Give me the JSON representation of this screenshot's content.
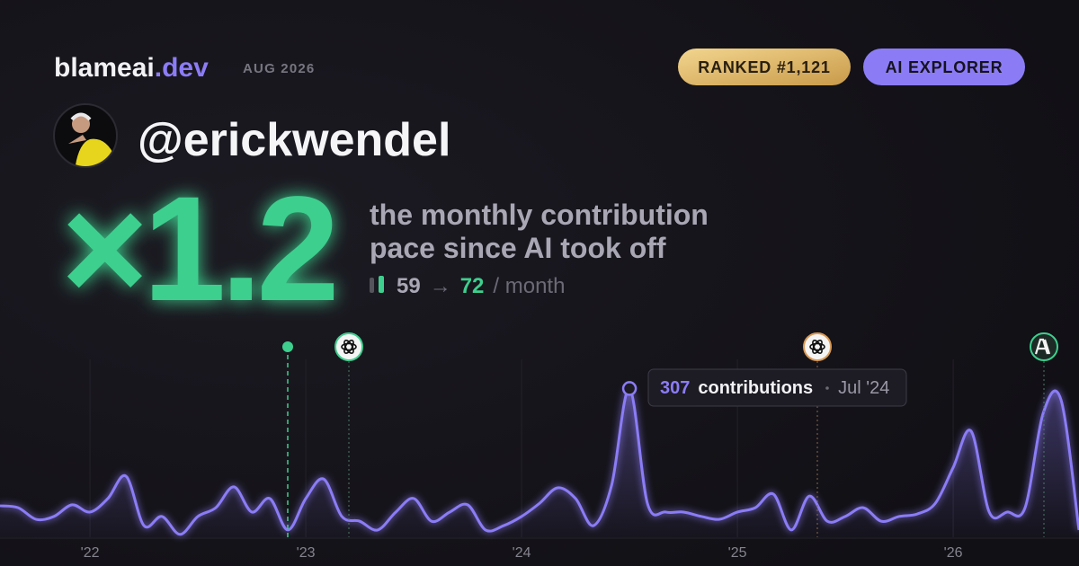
{
  "header": {
    "brand": "blameai",
    "brand_tld": ".dev",
    "date": "AUG 2026",
    "badges": [
      "RANKED #1,121",
      "AI EXPLORER"
    ]
  },
  "user": {
    "handle": "@erickwendel"
  },
  "headline": {
    "multiplier": "×1.2",
    "description_lines": [
      "the monthly contribution",
      "pace since AI took off"
    ],
    "before": 59,
    "arrow": "→",
    "after": 72,
    "unit": "/ month"
  },
  "chart_data": {
    "type": "line",
    "color": "#8b7cf6",
    "x": [
      2021.583,
      2021.667,
      2021.75,
      2021.833,
      2021.917,
      2022,
      2022.083,
      2022.167,
      2022.25,
      2022.333,
      2022.417,
      2022.5,
      2022.583,
      2022.667,
      2022.75,
      2022.833,
      2022.917,
      2023,
      2023.083,
      2023.167,
      2023.25,
      2023.333,
      2023.417,
      2023.5,
      2023.583,
      2023.667,
      2023.75,
      2023.833,
      2023.917,
      2024,
      2024.083,
      2024.167,
      2024.25,
      2024.333,
      2024.417,
      2024.5,
      2024.583,
      2024.667,
      2024.75,
      2024.833,
      2024.917,
      2025,
      2025.083,
      2025.167,
      2025.25,
      2025.333,
      2025.417,
      2025.5,
      2025.583,
      2025.667,
      2025.75,
      2025.833,
      2025.917,
      2026,
      2026.083,
      2026.167,
      2026.25,
      2026.333,
      2026.417,
      2026.5,
      2026.583
    ],
    "values": [
      65,
      61,
      37,
      43,
      67,
      52,
      80,
      126,
      24,
      43,
      6,
      43,
      61,
      104,
      52,
      80,
      15,
      80,
      120,
      43,
      33,
      15,
      52,
      80,
      33,
      52,
      67,
      15,
      24,
      43,
      70,
      102,
      80,
      24,
      107,
      307,
      70,
      52,
      52,
      43,
      37,
      52,
      61,
      89,
      15,
      85,
      33,
      43,
      61,
      33,
      43,
      48,
      70,
      144,
      219,
      52,
      52,
      61,
      256,
      283,
      15
    ],
    "xlim": [
      2021.583,
      2026.583
    ],
    "ylim": [
      0,
      330
    ],
    "xticks": [
      {
        "value": 2022,
        "label": "'22"
      },
      {
        "value": 2023,
        "label": "'23"
      },
      {
        "value": 2024,
        "label": "'24"
      },
      {
        "value": 2025,
        "label": "'25"
      },
      {
        "value": 2026,
        "label": "'26"
      }
    ],
    "grid": true,
    "tooltip": {
      "index": 35,
      "label": "contributions",
      "date": "Jul '24"
    }
  }
}
